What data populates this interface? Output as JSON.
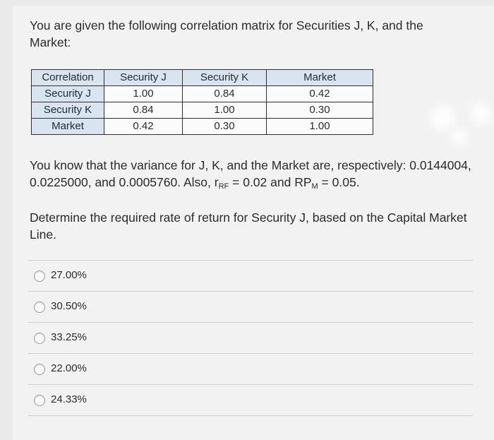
{
  "question": {
    "intro": "You are given the following correlation matrix for Securities J, K, and the Market:",
    "info_text": "You know that the variance for J, K, and the Market are, respectively: 0.0144004, 0.0225000, and 0.0005760. Also, r",
    "rf_sub": "RF",
    "rf_value": " = 0.02 and RP",
    "rpm_sub": "M",
    "rpm_value": " = 0.05.",
    "prompt": "Determine the required rate of return for Security J, based on the Capital Market Line."
  },
  "matrix": {
    "headers": [
      "Correlation",
      "Security J",
      "Security K",
      "Market"
    ],
    "rows": [
      [
        "Security J",
        "1.00",
        "0.84",
        "0.42"
      ],
      [
        "Security K",
        "0.84",
        "1.00",
        "0.30"
      ],
      [
        "Market",
        "0.42",
        "0.30",
        "1.00"
      ]
    ]
  },
  "options": [
    "27.00%",
    "30.50%",
    "33.25%",
    "22.00%",
    "24.33%"
  ]
}
